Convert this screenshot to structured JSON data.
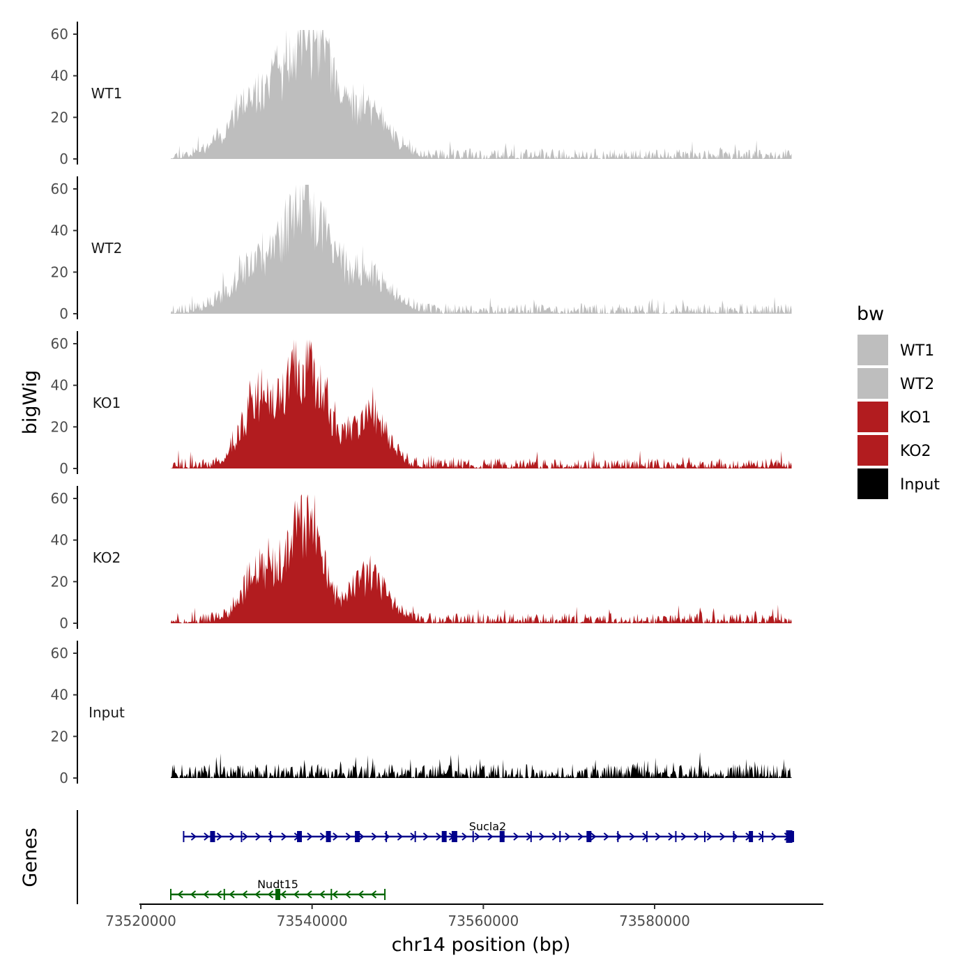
{
  "chart_data": {
    "type": "area",
    "ylabel": "bigWig",
    "xlabel": "chr14 position (bp)",
    "genes_label": "Genes",
    "ylim": [
      0,
      65
    ],
    "yticks": [
      0,
      20,
      40,
      60
    ],
    "ytick_labels": [
      "0",
      "20",
      "40",
      "60"
    ],
    "xlim": [
      73518000,
      73597000
    ],
    "xticks": [
      73520000,
      73540000,
      73560000,
      73580000
    ],
    "xtick_labels": [
      "73520000",
      "73540000",
      "73560000",
      "73580000"
    ],
    "data_range": [
      73523500,
      73596000
    ],
    "legend": {
      "title": "bw",
      "entries": [
        {
          "label": "WT1",
          "color": "#bebebe"
        },
        {
          "label": "WT2",
          "color": "#bebebe"
        },
        {
          "label": "KO1",
          "color": "#b21c1f"
        },
        {
          "label": "KO2",
          "color": "#b21c1f"
        },
        {
          "label": "Input",
          "color": "#000000"
        }
      ]
    },
    "tracks": [
      {
        "name": "WT1",
        "color": "#bebebe",
        "peaks": [
          [
            73533000,
            25,
            3000
          ],
          [
            73538500,
            38,
            2600
          ],
          [
            73540500,
            28,
            2200
          ],
          [
            73546500,
            24,
            2500
          ]
        ],
        "noise": 5,
        "seed": 11
      },
      {
        "name": "WT2",
        "color": "#bebebe",
        "peaks": [
          [
            73533500,
            24,
            2800
          ],
          [
            73538500,
            33,
            2200
          ],
          [
            73540500,
            25,
            2200
          ],
          [
            73546000,
            20,
            2700
          ]
        ],
        "noise": 5,
        "seed": 23
      },
      {
        "name": "KO1",
        "color": "#b21c1f",
        "peaks": [
          [
            73533500,
            33,
            1800
          ],
          [
            73538500,
            40,
            2000
          ],
          [
            73541000,
            25,
            2000
          ],
          [
            73547000,
            26,
            1900
          ]
        ],
        "noise": 5,
        "seed": 37
      },
      {
        "name": "KO2",
        "color": "#b21c1f",
        "peaks": [
          [
            73534000,
            27,
            2000
          ],
          [
            73538500,
            36,
            1700
          ],
          [
            73540500,
            24,
            1500
          ],
          [
            73546500,
            22,
            2200
          ]
        ],
        "noise": 5,
        "seed": 51
      },
      {
        "name": "Input",
        "color": "#000000",
        "peaks": [],
        "noise": 7,
        "seed": 71
      }
    ],
    "genes": [
      {
        "name": "Sucla2",
        "color": "#00008b",
        "strand": "+",
        "start": 73525000,
        "end": 73596000,
        "label_pos": 73560500
      },
      {
        "name": "Nudt15",
        "color": "#006400",
        "strand": "-",
        "start": 73523500,
        "end": 73548500,
        "label_pos": 73536000
      }
    ]
  }
}
